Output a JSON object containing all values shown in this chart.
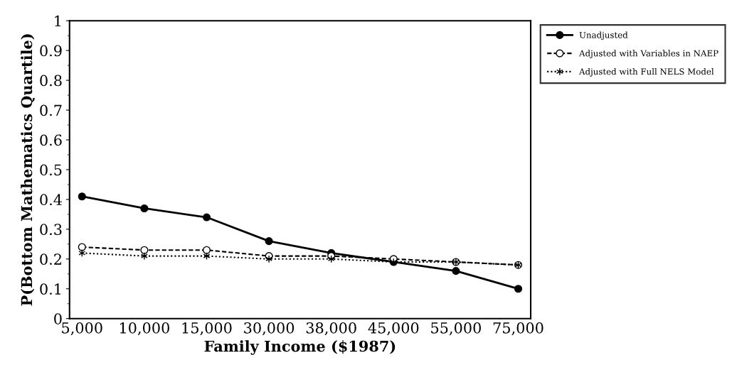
{
  "chart_data": {
    "type": "line",
    "xlabel": "Family Income ($1987)",
    "ylabel": "P(Bottom Mathematics Quartile)",
    "categories": [
      "5,000",
      "10,000",
      "15,000",
      "30,000",
      "38,000",
      "45,000",
      "55,000",
      "75,000"
    ],
    "series": [
      {
        "name": "Unadjusted",
        "color": "#000000",
        "marker": "circle",
        "line_style": "solid",
        "values": [
          0.41,
          0.37,
          0.34,
          0.26,
          0.22,
          0.19,
          0.16,
          0.1
        ]
      },
      {
        "name": "Adjusted with Variables in NAEP",
        "color": "#000000",
        "marker": "circle_open",
        "line_style": "dashed",
        "values": [
          0.24,
          0.23,
          0.23,
          0.21,
          0.21,
          0.2,
          0.19,
          0.18
        ]
      },
      {
        "name": "Adjusted with Full NELS Model",
        "color": "#000000",
        "marker": "cross",
        "line_style": "dotted",
        "values": [
          0.22,
          0.21,
          0.21,
          0.2,
          0.2,
          0.19,
          0.19,
          0.18
        ]
      }
    ],
    "ylim": [
      0,
      1
    ],
    "yticks": [
      0,
      0.1,
      0.2,
      0.3,
      0.4,
      0.5,
      0.6,
      0.7,
      0.8,
      0.9,
      1
    ],
    "grid": false,
    "legend": "top right"
  }
}
